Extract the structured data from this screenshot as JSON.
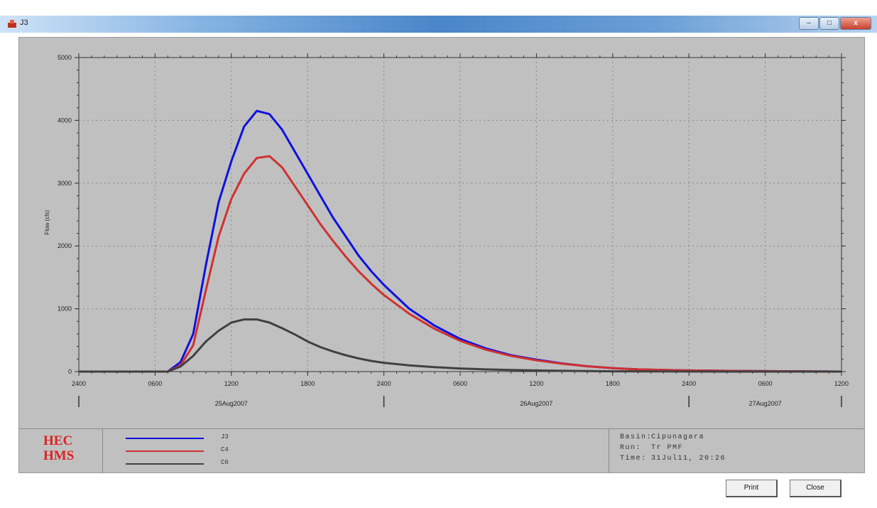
{
  "window": {
    "title": "J3",
    "buttons": {
      "minimize": "–",
      "maximize": "□",
      "close": "x"
    }
  },
  "chart_data": {
    "type": "line",
    "ylabel": "Flow (cfs)",
    "ylim": [
      0,
      5000
    ],
    "yticks": [
      0,
      1000,
      2000,
      3000,
      4000,
      5000
    ],
    "xlim": [
      0,
      60
    ],
    "xticks": [
      {
        "x": 0,
        "label": "2400"
      },
      {
        "x": 6,
        "label": "0600"
      },
      {
        "x": 12,
        "label": "1200"
      },
      {
        "x": 18,
        "label": "1800"
      },
      {
        "x": 24,
        "label": "2400"
      },
      {
        "x": 30,
        "label": "0600"
      },
      {
        "x": 36,
        "label": "1200"
      },
      {
        "x": 42,
        "label": "1800"
      },
      {
        "x": 48,
        "label": "2400"
      },
      {
        "x": 54,
        "label": "0600"
      },
      {
        "x": 60,
        "label": "1200"
      }
    ],
    "dates": [
      {
        "x": 12,
        "label": "25Aug2007"
      },
      {
        "x": 36,
        "label": "26Aug2007"
      },
      {
        "x": 54,
        "label": "27Aug2007"
      }
    ],
    "date_separators": [
      0,
      24,
      48,
      60
    ],
    "x": [
      0,
      7,
      8,
      9,
      10,
      11,
      12,
      13,
      14,
      15,
      16,
      17,
      18,
      19,
      20,
      21,
      22,
      23,
      24,
      26,
      28,
      30,
      32,
      34,
      36,
      38,
      40,
      42,
      44,
      46,
      48,
      52,
      56,
      60
    ],
    "series": [
      {
        "name": "J3",
        "color": "#1010e0",
        "values": [
          0,
          0,
          150,
          600,
          1700,
          2700,
          3350,
          3900,
          4150,
          4100,
          3850,
          3500,
          3150,
          2800,
          2450,
          2150,
          1850,
          1600,
          1380,
          1000,
          730,
          520,
          370,
          260,
          190,
          130,
          85,
          55,
          35,
          25,
          18,
          10,
          4,
          0
        ]
      },
      {
        "name": "C4",
        "color": "#d03030",
        "values": [
          0,
          0,
          100,
          420,
          1300,
          2150,
          2750,
          3150,
          3400,
          3430,
          3250,
          2950,
          2650,
          2350,
          2080,
          1830,
          1600,
          1400,
          1220,
          920,
          680,
          490,
          350,
          250,
          180,
          125,
          85,
          55,
          35,
          25,
          18,
          10,
          4,
          0
        ]
      },
      {
        "name": "C6",
        "color": "#404040",
        "values": [
          0,
          0,
          80,
          250,
          480,
          650,
          780,
          830,
          830,
          780,
          690,
          590,
          480,
          390,
          320,
          260,
          210,
          170,
          140,
          100,
          70,
          50,
          35,
          25,
          18,
          12,
          8,
          5,
          3,
          2,
          1,
          0,
          0,
          0
        ]
      }
    ]
  },
  "legend_box": {
    "logo_lines": [
      "HEC",
      "HMS"
    ]
  },
  "info": {
    "basin_label": "Basin:",
    "basin": "Cipunagara",
    "run_label": "Run:",
    "run": "Tr PMF",
    "time_label": "Time:",
    "time": "31Jul11, 20:26"
  },
  "buttons": {
    "print": "Print",
    "close": "Close"
  }
}
